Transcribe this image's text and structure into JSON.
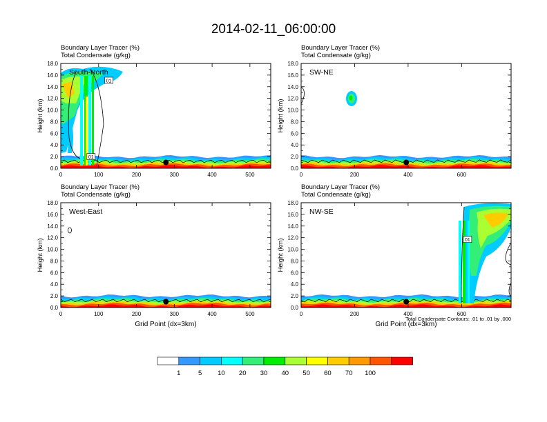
{
  "title": "2014-02-11_06:00:00",
  "chart_data": [
    {
      "type": "heatmap",
      "panel": "top-left",
      "label": "South-North",
      "header": [
        "Boundary Layer Tracer   (%)",
        "Total Condensate   (g/kg)"
      ],
      "ylabel": "Height (km)",
      "xlabel": "",
      "ylim": [
        0,
        18
      ],
      "xlim": [
        0,
        555
      ],
      "yticks": [
        "0.0",
        "2.0",
        "4.0",
        "6.0",
        "8.0",
        "10.0",
        "12.0",
        "14.0",
        "16.0",
        "18.0"
      ],
      "xticks": [
        0,
        100,
        200,
        300,
        400,
        500
      ],
      "marker": {
        "x": 278,
        "y": 1.0
      },
      "boxes": [
        {
          "text": "01",
          "x": 127,
          "y": 15.1
        },
        {
          "text": "01",
          "x": 80,
          "y": 2.0
        }
      ]
    },
    {
      "type": "heatmap",
      "panel": "top-right",
      "label": "SW-NE",
      "header": [
        "Boundary Layer Tracer   (%)",
        "Total Condensate   (g/kg)"
      ],
      "ylabel": "Height (km)",
      "xlabel": "",
      "ylim": [
        0,
        18
      ],
      "xlim": [
        0,
        785
      ],
      "yticks": [
        "0.0",
        "2.0",
        "4.0",
        "6.0",
        "8.0",
        "10.0",
        "12.0",
        "14.0",
        "16.0",
        "18.0"
      ],
      "xticks": [
        0,
        200,
        400,
        600
      ],
      "marker": {
        "x": 393,
        "y": 1.0
      },
      "boxes": []
    },
    {
      "type": "heatmap",
      "panel": "bottom-left",
      "label": "West-East",
      "header": [
        "Boundary Layer Tracer   (%)",
        "Total Condensate   (g/kg)"
      ],
      "ylabel": "Height (km)",
      "xlabel": "Grid Point (dx=3km)",
      "ylim": [
        0,
        18
      ],
      "xlim": [
        0,
        555
      ],
      "yticks": [
        "0.0",
        "2.0",
        "4.0",
        "6.0",
        "8.0",
        "10.0",
        "12.0",
        "14.0",
        "16.0",
        "18.0"
      ],
      "xticks": [
        0,
        100,
        200,
        300,
        400,
        500
      ],
      "marker": {
        "x": 278,
        "y": 1.0
      },
      "boxes": []
    },
    {
      "type": "heatmap",
      "panel": "bottom-right",
      "label": "NW-SE",
      "header": [
        "Boundary Layer Tracer   (%)",
        "Total Condensate   (g/kg)"
      ],
      "ylabel": "Height (km)",
      "xlabel": "Grid Point (dx=3km)",
      "note": "Total Condensate Contours: .01 to .01 by .000",
      "ylim": [
        0,
        18
      ],
      "xlim": [
        0,
        785
      ],
      "yticks": [
        "0.0",
        "2.0",
        "4.0",
        "6.0",
        "8.0",
        "10.0",
        "12.0",
        "14.0",
        "16.0",
        "18.0"
      ],
      "xticks": [
        0,
        200,
        400,
        600
      ],
      "marker": {
        "x": 393,
        "y": 1.0
      },
      "boxes": [
        {
          "text": "01",
          "x": 622,
          "y": 11.7
        }
      ]
    }
  ],
  "colorbar": {
    "labels": [
      "1",
      "5",
      "10",
      "20",
      "30",
      "40",
      "50",
      "60",
      "70",
      "100"
    ],
    "colors": [
      "#ffffff",
      "#3399ff",
      "#00ccff",
      "#00ffff",
      "#33ee77",
      "#00ee00",
      "#aaff33",
      "#ffff00",
      "#ffcc00",
      "#ff9900",
      "#ff5500",
      "#ff0000"
    ]
  }
}
